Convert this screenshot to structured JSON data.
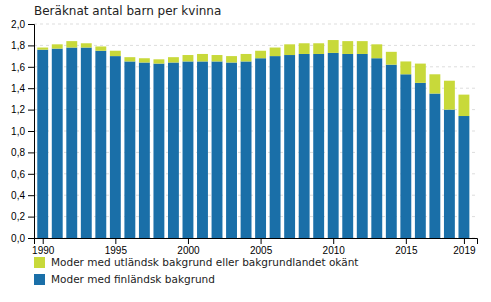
{
  "chart_data": {
    "type": "bar",
    "stacked": true,
    "title": "Beräknat antal barn per kvinna",
    "x": [
      1990,
      1991,
      1992,
      1993,
      1994,
      1995,
      1996,
      1997,
      1998,
      1999,
      2000,
      2001,
      2002,
      2003,
      2004,
      2005,
      2006,
      2007,
      2008,
      2009,
      2010,
      2011,
      2012,
      2013,
      2014,
      2015,
      2016,
      2017,
      2018,
      2019
    ],
    "series": [
      {
        "name": "Moder med finländsk bakgrund",
        "color": "#1a6fa8",
        "values": [
          1.76,
          1.77,
          1.78,
          1.78,
          1.75,
          1.7,
          1.65,
          1.64,
          1.63,
          1.64,
          1.65,
          1.65,
          1.65,
          1.64,
          1.65,
          1.68,
          1.7,
          1.71,
          1.72,
          1.72,
          1.73,
          1.72,
          1.72,
          1.68,
          1.62,
          1.53,
          1.45,
          1.35,
          1.2,
          1.14
        ]
      },
      {
        "name": "Moder med utländsk bakgrund eller bakgrundlandet okänt",
        "color": "#c8d93a",
        "values": [
          0.02,
          0.04,
          0.06,
          0.04,
          0.04,
          0.05,
          0.04,
          0.04,
          0.04,
          0.05,
          0.06,
          0.07,
          0.06,
          0.06,
          0.07,
          0.07,
          0.08,
          0.1,
          0.1,
          0.1,
          0.12,
          0.12,
          0.12,
          0.13,
          0.12,
          0.12,
          0.18,
          0.18,
          0.27,
          0.2
        ]
      }
    ],
    "xlim": [
      1989.4,
      2019.9
    ],
    "xticks": [
      1990,
      1995,
      2000,
      2005,
      2010,
      2015,
      2019
    ],
    "ylim": [
      0.0,
      2.0
    ],
    "yticks": [
      {
        "value": 0.0,
        "label": "0,0"
      },
      {
        "value": 0.2,
        "label": "0,2"
      },
      {
        "value": 0.4,
        "label": "0,4"
      },
      {
        "value": 0.6,
        "label": "0,6"
      },
      {
        "value": 0.8,
        "label": "0,8"
      },
      {
        "value": 1.0,
        "label": "1,0"
      },
      {
        "value": 1.2,
        "label": "1,2"
      },
      {
        "value": 1.4,
        "label": "1,4"
      },
      {
        "value": 1.6,
        "label": "1,6"
      },
      {
        "value": 1.8,
        "label": "1,8"
      },
      {
        "value": 2.0,
        "label": "2,0"
      }
    ],
    "grid": true,
    "legend": "bottom"
  }
}
